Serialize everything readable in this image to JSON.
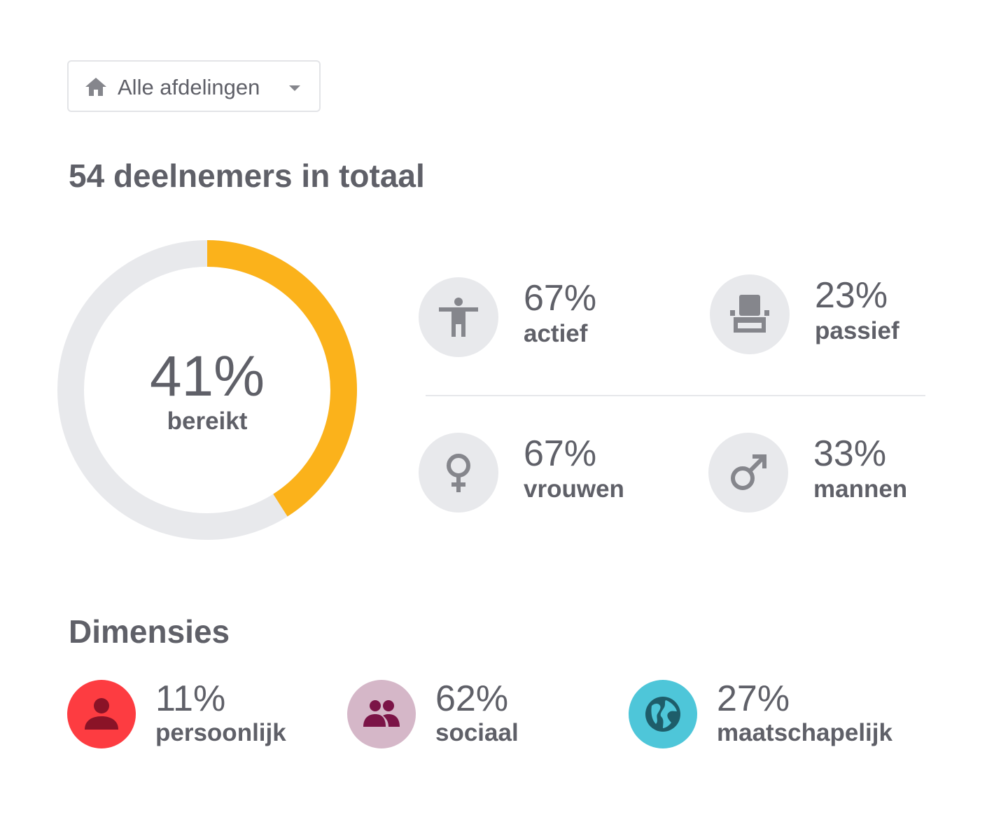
{
  "department_select": {
    "label": "Alle afdelingen",
    "icon": "home-icon"
  },
  "summary": {
    "title": "54 deelnemers in totaal"
  },
  "reach": {
    "value": "41%",
    "label": "bereikt",
    "fraction": 0.41,
    "color": "#fbb21b",
    "track_color": "#e8e9ec"
  },
  "stats": {
    "active": {
      "value": "67%",
      "label": "actief",
      "icon": "person-active-icon"
    },
    "passive": {
      "value": "23%",
      "label": "passief",
      "icon": "armchair-icon"
    },
    "women": {
      "value": "67%",
      "label": "vrouwen",
      "icon": "female-icon"
    },
    "men": {
      "value": "33%",
      "label": "mannen",
      "icon": "male-icon"
    }
  },
  "dimensions": {
    "title": "Dimensies",
    "items": [
      {
        "value": "11%",
        "label": "persoonlijk",
        "icon": "person-icon",
        "color": "#fd3c41",
        "icon_color": "#8a1327"
      },
      {
        "value": "62%",
        "label": "sociaal",
        "icon": "group-icon",
        "color": "#d5b7c8",
        "icon_color": "#7b1447"
      },
      {
        "value": "27%",
        "label": "maatschapelijk",
        "icon": "globe-icon",
        "color": "#4ec6d9",
        "icon_color": "#1e5d6a"
      }
    ]
  }
}
